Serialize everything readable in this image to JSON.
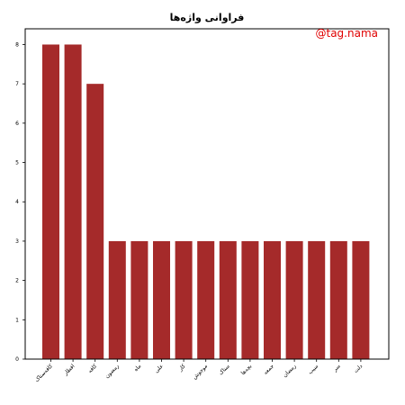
{
  "chart_data": {
    "type": "bar",
    "title": "فراوانی واژه‌ها",
    "watermark": "@tag.nama",
    "xlabel": "",
    "ylabel": "",
    "ylim": [
      0,
      8.4
    ],
    "yticks": [
      0,
      1,
      2,
      3,
      4,
      5,
      6,
      7,
      8
    ],
    "grid": false,
    "bar_color": "#a52a2a",
    "categories": [
      "کافه‌ستاک",
      "افطار",
      "کافه",
      "رمضون",
      "ماه",
      "علی",
      "کار",
      "موجوش",
      "ستاک",
      "بچه‌ها",
      "جمعه",
      "رمضان",
      "سیب",
      "سر",
      "دلت"
    ],
    "values": [
      8,
      8,
      7,
      3,
      3,
      3,
      3,
      3,
      3,
      3,
      3,
      3,
      3,
      3,
      3
    ]
  }
}
